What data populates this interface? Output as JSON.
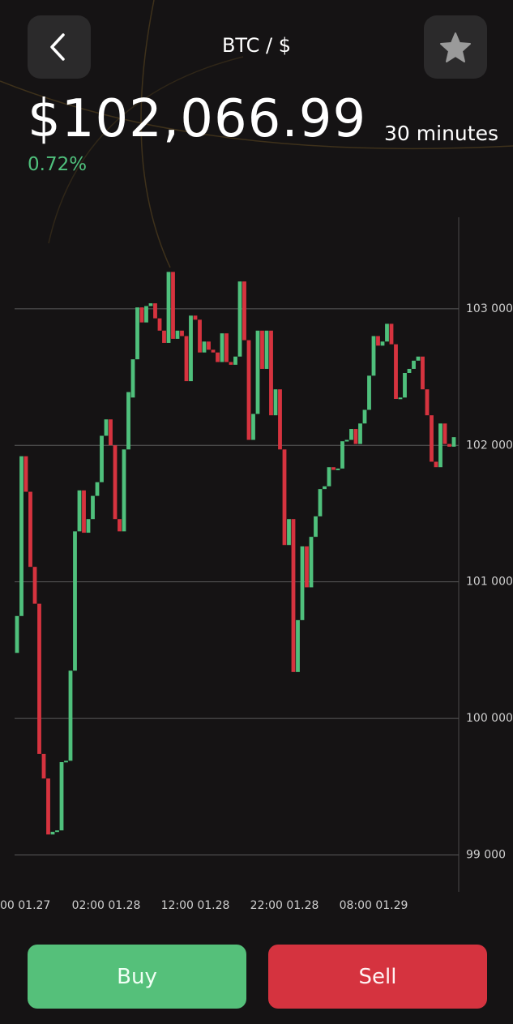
{
  "header": {
    "title": "BTC / $"
  },
  "price": {
    "value": "$102,066.99",
    "change": "0.72%"
  },
  "interval": "30 minutes",
  "chart_data": {
    "type": "candlestick",
    "categories": [
      "00 01.27",
      null,
      null,
      null,
      null,
      null,
      null,
      null,
      null,
      null,
      null,
      null,
      null,
      null,
      null,
      null,
      null,
      null,
      null,
      null,
      "02:00 01.28",
      null,
      null,
      null,
      null,
      null,
      null,
      null,
      null,
      null,
      null,
      null,
      null,
      null,
      null,
      null,
      null,
      null,
      null,
      null,
      "12:00 01.28",
      null,
      null,
      null,
      null,
      null,
      null,
      null,
      null,
      null,
      null,
      null,
      null,
      null,
      null,
      null,
      null,
      null,
      null,
      null,
      "22:00 01.28",
      null,
      null,
      null,
      null,
      null,
      null,
      null,
      null,
      null,
      null,
      null,
      null,
      null,
      null,
      null,
      null,
      null,
      null,
      null,
      "08:00 01.29",
      null,
      null,
      null,
      null,
      null,
      null,
      null,
      null,
      null,
      null,
      null,
      null,
      null,
      null,
      null,
      null,
      null,
      null
    ],
    "open": [
      100480,
      100750,
      101920,
      101660,
      101110,
      100840,
      99740,
      99560,
      99150,
      99170,
      99180,
      99680,
      99690,
      100350,
      101370,
      101670,
      101360,
      101460,
      101630,
      101730,
      102070,
      102190,
      102000,
      101460,
      101370,
      101970,
      102350,
      102630,
      103010,
      102900,
      103020,
      103040,
      102930,
      102840,
      102750,
      103270,
      102780,
      102840,
      102800,
      102470,
      102950,
      102920,
      102680,
      102760,
      102700,
      102680,
      102610,
      102820,
      102610,
      102590,
      102650,
      103200,
      102770,
      102040,
      102230,
      102840,
      102560,
      102840,
      102220,
      102410,
      101970,
      101270,
      101460,
      100340,
      100720,
      101260,
      100960,
      101330,
      101480,
      101680,
      101700,
      101840,
      101820,
      101830,
      102030,
      102040,
      102120,
      102010,
      102160,
      102260,
      102510,
      102800,
      102730,
      102760,
      102890,
      102740,
      102340,
      102350,
      102530,
      102560,
      102620,
      102650,
      102410,
      102220,
      101880,
      101840,
      102160,
      102010,
      101990
    ],
    "close": [
      100750,
      101920,
      101660,
      101110,
      100840,
      99740,
      99560,
      99150,
      99170,
      99180,
      99680,
      99690,
      100350,
      101370,
      101670,
      101360,
      101460,
      101630,
      101730,
      102070,
      102190,
      102000,
      101460,
      101370,
      101970,
      102390,
      102630,
      103010,
      102900,
      103020,
      103040,
      102930,
      102840,
      102750,
      103270,
      102780,
      102840,
      102800,
      102470,
      102950,
      102920,
      102680,
      102760,
      102700,
      102680,
      102610,
      102820,
      102610,
      102590,
      102650,
      103200,
      102770,
      102040,
      102230,
      102840,
      102560,
      102840,
      102220,
      102410,
      101970,
      101270,
      101460,
      100340,
      100720,
      101260,
      100960,
      101330,
      101480,
      101680,
      101700,
      101840,
      101820,
      101830,
      102030,
      102040,
      102120,
      102010,
      102160,
      102260,
      102510,
      102800,
      102730,
      102760,
      102890,
      102740,
      102340,
      102350,
      102530,
      102560,
      102620,
      102650,
      102410,
      102220,
      101880,
      101840,
      102160,
      102010,
      101990,
      102060
    ],
    "up_color": "#4fc07c",
    "down_color": "#d6333f",
    "ylim": [
      98730,
      103670
    ],
    "yticks": [
      {
        "value": 99000,
        "label": "99 000"
      },
      {
        "value": 100000,
        "label": "100 000"
      },
      {
        "value": 101000,
        "label": "101 000"
      },
      {
        "value": 102000,
        "label": "102 000"
      },
      {
        "value": 103000,
        "label": "103 000"
      }
    ],
    "grid": true
  },
  "actions": {
    "buy": "Buy",
    "sell": "Sell"
  }
}
